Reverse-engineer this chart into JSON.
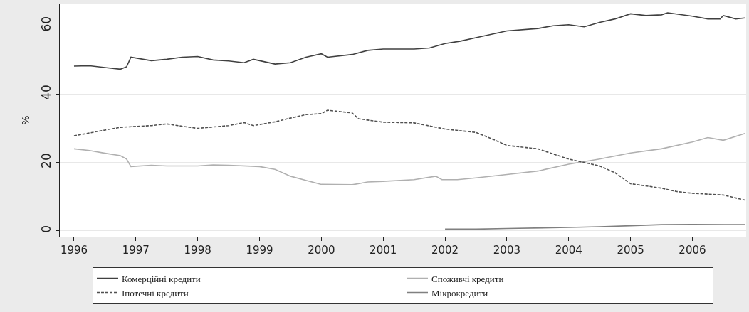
{
  "chart_data": {
    "type": "line",
    "ylabel": "%",
    "xlim": [
      1995.77,
      2006.87
    ],
    "xticks": [
      1996,
      1997,
      1998,
      1999,
      2000,
      2001,
      2002,
      2003,
      2004,
      2005,
      2006
    ],
    "ylim": [
      -1.7,
      66.5
    ],
    "yticks": [
      0,
      20,
      40,
      60
    ],
    "grid": "y",
    "legend": "bottom",
    "series": [
      {
        "name": "Комерційні кредити",
        "color": "#404040",
        "line_style": "solid",
        "x": [
          1996.0,
          1996.25,
          1996.5,
          1996.75,
          1996.85,
          1996.92,
          1997.25,
          1997.5,
          1997.75,
          1998.0,
          1998.25,
          1998.5,
          1998.75,
          1998.9,
          1999.25,
          1999.5,
          1999.75,
          2000.0,
          2000.1,
          2000.5,
          2000.75,
          2001.0,
          2001.5,
          2001.75,
          2002.0,
          2002.25,
          2002.5,
          2002.75,
          2003.0,
          2003.5,
          2003.75,
          2004.0,
          2004.25,
          2004.5,
          2004.75,
          2005.0,
          2005.25,
          2005.5,
          2005.6,
          2006.0,
          2006.25,
          2006.45,
          2006.5,
          2006.7,
          2006.85
        ],
        "values": [
          48.2,
          48.3,
          47.8,
          47.3,
          48.0,
          50.8,
          49.8,
          50.2,
          50.8,
          51.0,
          50.0,
          49.7,
          49.2,
          50.2,
          48.8,
          49.2,
          50.8,
          51.8,
          50.8,
          51.6,
          52.8,
          53.2,
          53.2,
          53.5,
          54.8,
          55.5,
          56.5,
          57.5,
          58.5,
          59.2,
          60.0,
          60.3,
          59.7,
          61.0,
          62.0,
          63.5,
          63.0,
          63.2,
          63.8,
          62.8,
          62.0,
          62.0,
          63.0,
          62.0,
          62.3
        ]
      },
      {
        "name": "Споживчі кредити",
        "color": "#b0b0b0",
        "line_style": "solid",
        "x": [
          1996.0,
          1996.25,
          1996.5,
          1996.75,
          1996.85,
          1996.92,
          1997.25,
          1997.5,
          1998.0,
          1998.25,
          1998.5,
          1999.0,
          1999.25,
          1999.5,
          1999.75,
          2000.0,
          2000.5,
          2000.75,
          2001.0,
          2001.5,
          2001.85,
          2001.95,
          2002.2,
          2002.5,
          2003.0,
          2003.5,
          2004.0,
          2004.5,
          2005.0,
          2005.5,
          2006.0,
          2006.25,
          2006.5,
          2006.85
        ],
        "values": [
          24.0,
          23.5,
          22.7,
          22.0,
          21.0,
          18.8,
          19.2,
          19.0,
          19.0,
          19.3,
          19.2,
          18.8,
          18.0,
          16.0,
          14.8,
          13.6,
          13.5,
          14.3,
          14.5,
          15.0,
          16.0,
          15.0,
          15.0,
          15.5,
          16.5,
          17.5,
          19.5,
          21.0,
          22.8,
          24.0,
          26.0,
          27.3,
          26.5,
          28.5
        ]
      },
      {
        "name": "Іпотечні кредити",
        "color": "#505050",
        "line_style": "dashed",
        "x": [
          1996.0,
          1996.5,
          1996.75,
          1997.25,
          1997.5,
          1997.75,
          1998.0,
          1998.5,
          1998.75,
          1998.9,
          1999.25,
          1999.5,
          1999.75,
          2000.0,
          2000.1,
          2000.5,
          2000.6,
          2001.0,
          2001.5,
          2002.0,
          2002.5,
          2002.75,
          2003.0,
          2003.5,
          2003.75,
          2004.0,
          2004.25,
          2004.5,
          2004.75,
          2005.0,
          2005.5,
          2005.75,
          2006.0,
          2006.5,
          2006.85
        ],
        "values": [
          27.8,
          29.5,
          30.3,
          30.8,
          31.3,
          30.6,
          30.0,
          30.8,
          31.7,
          30.8,
          31.9,
          33.0,
          34.0,
          34.3,
          35.3,
          34.5,
          32.8,
          31.8,
          31.6,
          29.8,
          28.8,
          27.0,
          25.0,
          24.0,
          22.5,
          21.0,
          20.0,
          19.0,
          17.0,
          13.8,
          12.5,
          11.5,
          11.0,
          10.5,
          9.0
        ]
      },
      {
        "name": "Мікрокредити",
        "color": "#808080",
        "line_style": "solid",
        "x": [
          2002.0,
          2002.5,
          2003.0,
          2004.0,
          2004.5,
          2005.0,
          2005.5,
          2006.0,
          2006.85
        ],
        "values": [
          0.5,
          0.5,
          0.7,
          1.0,
          1.2,
          1.5,
          1.8,
          1.9,
          1.8
        ]
      }
    ]
  }
}
